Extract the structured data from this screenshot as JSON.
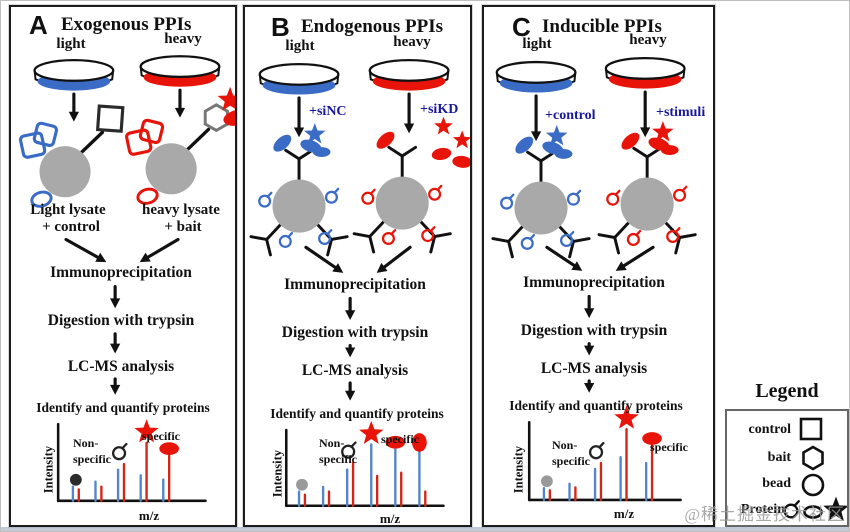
{
  "watermark": "@稀土掘金技术社区",
  "colors": {
    "light_blue": "#3a6cc6",
    "heavy_red": "#e81409",
    "bead_gray": "#a9a9a9",
    "treatment_text": "#18189a",
    "peak_light": "#5585c7",
    "peak_heavy": "#d42616"
  },
  "panels": [
    {
      "letter": "A",
      "title": "Exogenous PPIs",
      "dish_labels": [
        "light",
        "heavy"
      ],
      "complex_labels": {
        "left_line1": "Light lysate",
        "left_line2": "+ control",
        "right_line1": "heavy lysate",
        "right_line2": "+ bait"
      },
      "steps": [
        "Immunoprecipitation",
        "Digestion with trypsin",
        "LC-MS analysis",
        "Identify and quantify proteins"
      ]
    },
    {
      "letter": "B",
      "title": "Endogenous PPIs",
      "dish_labels": [
        "light",
        "heavy"
      ],
      "treatments": [
        "+siNC",
        "+siKD"
      ],
      "steps": [
        "Immunoprecipitation",
        "Digestion with trypsin",
        "LC-MS analysis",
        "Identify and quantify proteins"
      ]
    },
    {
      "letter": "C",
      "title": "Inducible PPIs",
      "dish_labels": [
        "light",
        "heavy"
      ],
      "treatments": [
        "+control",
        "+stimuli"
      ],
      "steps": [
        "Immunoprecipitation",
        "Digestion with trypsin",
        "LC-MS analysis",
        "Identify and quantify proteins"
      ]
    }
  ],
  "legend": {
    "title": "Legend",
    "rows": [
      {
        "label": "control",
        "glyph": "open-square"
      },
      {
        "label": "bait",
        "glyph": "open-hexagon"
      },
      {
        "label": "bead",
        "glyph": "open-circle"
      },
      {
        "label": "Protein",
        "glyph": "protein-glyph / open-oval / filled-star"
      }
    ]
  },
  "chart_data": [
    {
      "type": "bar",
      "panel": "A",
      "xlabel": "m/z",
      "ylabel": "Intensity",
      "annotations": {
        "nonspecific_line1": "Non-",
        "nonspecific_line2": "specific",
        "specific": "specific"
      },
      "series": [
        {
          "name": "light",
          "color": "#5585c7"
        },
        {
          "name": "heavy",
          "color": "#d42616"
        }
      ],
      "peaks": [
        {
          "light": 20,
          "heavy": 16,
          "marker": "dot",
          "marker_color": "#2b2b2b"
        },
        {
          "light": 27,
          "heavy": 20
        },
        {
          "light": 44,
          "heavy": 52,
          "marker": "protein-b",
          "marker_color": "#222222"
        },
        {
          "light": 36,
          "heavy": 82,
          "marker": "star",
          "on": "heavy",
          "marker_color": "#e81409"
        },
        {
          "light": 30,
          "heavy": 64,
          "marker": "oval",
          "on": "heavy",
          "marker_color": "#e81409"
        }
      ]
    },
    {
      "type": "bar",
      "panel": "B",
      "xlabel": "m/z",
      "ylabel": "Intensity",
      "annotations": {
        "nonspecific_line1": "Non-",
        "nonspecific_line2": "specific",
        "specific": "specific"
      },
      "series": [
        {
          "name": "light",
          "color": "#5585c7"
        },
        {
          "name": "heavy",
          "color": "#d42616"
        }
      ],
      "peaks": [
        {
          "light": 18,
          "heavy": 14,
          "marker": "dot",
          "marker_color": "#999999"
        },
        {
          "light": 24,
          "heavy": 18
        },
        {
          "light": 46,
          "heavy": 55,
          "marker": "protein-b",
          "marker_color": "#222222"
        },
        {
          "light": 78,
          "heavy": 38,
          "marker": "star",
          "on": "light",
          "marker_color": "#e81409"
        },
        {
          "light": 72,
          "heavy": 42,
          "marker": "oval",
          "on": "light",
          "marker_color": "#e81409"
        },
        {
          "light": 68,
          "heavy": 18,
          "marker": "blob",
          "on": "light",
          "marker_color": "#e81409"
        }
      ]
    },
    {
      "type": "bar",
      "panel": "C",
      "xlabel": "m/z",
      "ylabel": "Intensity",
      "annotations": {
        "nonspecific_line1": "Non-",
        "nonspecific_line2": "specific",
        "specific": "specific"
      },
      "series": [
        {
          "name": "light",
          "color": "#5585c7"
        },
        {
          "name": "heavy",
          "color": "#d42616"
        }
      ],
      "peaks": [
        {
          "light": 16,
          "heavy": 13,
          "marker": "dot",
          "marker_color": "#999999"
        },
        {
          "light": 22,
          "heavy": 17
        },
        {
          "light": 42,
          "heavy": 50,
          "marker": "protein-b",
          "marker_color": "#222222"
        },
        {
          "light": 58,
          "heavy": 96,
          "marker": "star",
          "on": "heavy",
          "marker_color": "#e81409"
        },
        {
          "light": 50,
          "heavy": 74,
          "marker": "oval",
          "on": "heavy",
          "marker_color": "#e81409"
        }
      ]
    }
  ]
}
